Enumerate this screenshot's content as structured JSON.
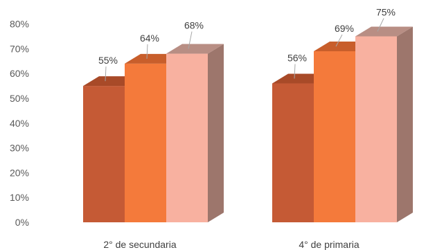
{
  "chart_data": {
    "type": "bar",
    "style": "3d-clustered-column",
    "title": "",
    "xlabel": "",
    "ylabel": "",
    "categories": [
      "2° de secundaria",
      "4° de primaria"
    ],
    "series": [
      {
        "values": [
          55,
          56
        ],
        "labels": [
          "55%",
          "56%"
        ],
        "color": "#c55a35",
        "top_color": "#a84a28",
        "side_color": "#8a3d22"
      },
      {
        "values": [
          64,
          69
        ],
        "labels": [
          "64%",
          "69%"
        ],
        "color": "#f47a3b",
        "top_color": "#c85e2b",
        "side_color": "#b15628"
      },
      {
        "values": [
          68,
          75
        ],
        "labels": [
          "68%",
          "75%"
        ],
        "color": "#f8b1a0",
        "top_color": "#b88e84",
        "side_color": "#9d766c"
      }
    ],
    "y_ticks": [
      "0%",
      "10%",
      "20%",
      "30%",
      "40%",
      "50%",
      "60%",
      "70%",
      "80%"
    ],
    "ylim": [
      0,
      80
    ],
    "y_unit": "%",
    "grid": false,
    "legend": "none"
  }
}
